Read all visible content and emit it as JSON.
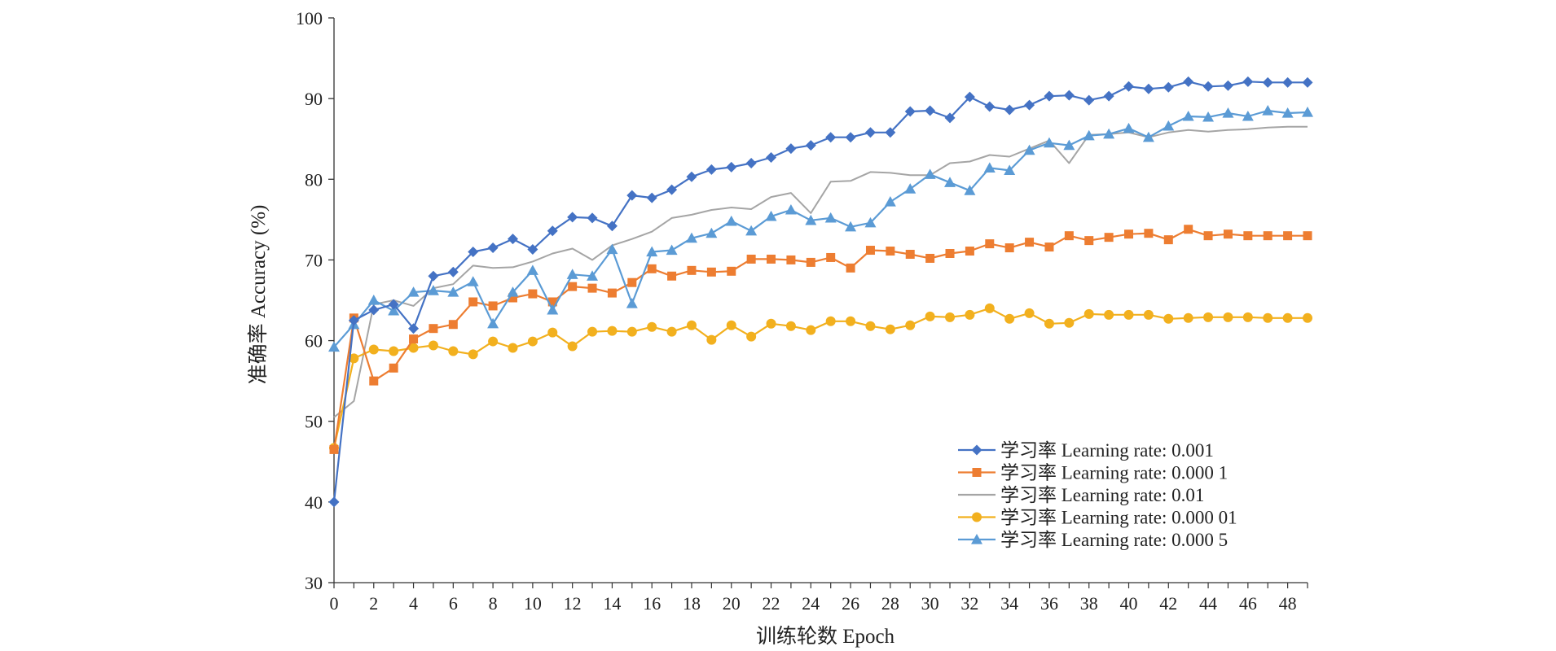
{
  "chart_data": {
    "type": "line",
    "xlabel": "训练轮数 Epoch",
    "ylabel": "准确率 Accuracy (%)",
    "xlim": [
      0,
      49
    ],
    "ylim": [
      30,
      100
    ],
    "x_ticks": [
      "0",
      "2",
      "4",
      "6",
      "8",
      "10",
      "12",
      "14",
      "16",
      "18",
      "20",
      "22",
      "24",
      "26",
      "28",
      "30",
      "32",
      "34",
      "36",
      "38",
      "40",
      "42",
      "44",
      "46",
      "48"
    ],
    "y_ticks": [
      "30",
      "40",
      "50",
      "60",
      "70",
      "80",
      "90",
      "100"
    ],
    "grid": false,
    "legend_position": "lower-right",
    "x": [
      0,
      1,
      2,
      3,
      4,
      5,
      6,
      7,
      8,
      9,
      10,
      11,
      12,
      13,
      14,
      15,
      16,
      17,
      18,
      19,
      20,
      21,
      22,
      23,
      24,
      25,
      26,
      27,
      28,
      29,
      30,
      31,
      32,
      33,
      34,
      35,
      36,
      37,
      38,
      39,
      40,
      41,
      42,
      43,
      44,
      45,
      46,
      47,
      48,
      49
    ],
    "series": [
      {
        "name": "学习率 Learning rate: 0.001",
        "color": "#4472C4",
        "marker": "diamond",
        "values": [
          40,
          62.5,
          63.8,
          64.5,
          61.5,
          68,
          68.5,
          71,
          71.5,
          72.6,
          71.3,
          73.6,
          75.3,
          75.2,
          74.2,
          78,
          77.7,
          78.7,
          80.3,
          81.2,
          81.5,
          82,
          82.7,
          83.8,
          84.2,
          85.2,
          85.2,
          85.8,
          85.8,
          88.4,
          88.5,
          87.6,
          90.2,
          89,
          88.6,
          89.2,
          90.3,
          90.4,
          89.8,
          90.3,
          91.5,
          91.2,
          91.4,
          92.1,
          91.5,
          91.6,
          92.1,
          92,
          92,
          92
        ]
      },
      {
        "name": "学习率 Learning rate: 0.000 1",
        "color": "#ED7D31",
        "marker": "square",
        "values": [
          46.5,
          62.8,
          55,
          56.6,
          60.2,
          61.5,
          62,
          64.8,
          64.3,
          65.3,
          65.8,
          64.8,
          66.7,
          66.5,
          65.9,
          67.2,
          68.9,
          68,
          68.7,
          68.5,
          68.6,
          70.1,
          70.1,
          70,
          69.7,
          70.3,
          69,
          71.2,
          71.1,
          70.7,
          70.2,
          70.8,
          71.1,
          72,
          71.5,
          72.2,
          71.6,
          73,
          72.4,
          72.8,
          73.2,
          73.3,
          72.5,
          73.8,
          73,
          73.2,
          73,
          73,
          73,
          73
        ]
      },
      {
        "name": "学习率 Learning rate: 0.01",
        "color": "#A5A5A5",
        "marker": "none",
        "values": [
          50.5,
          52.5,
          64.5,
          65,
          64.3,
          66.5,
          67,
          69.3,
          69,
          69.1,
          69.8,
          70.8,
          71.4,
          70,
          71.8,
          72.6,
          73.5,
          75.2,
          75.6,
          76.2,
          76.5,
          76.3,
          77.8,
          78.3,
          75.8,
          79.7,
          79.8,
          80.9,
          80.8,
          80.5,
          80.5,
          82,
          82.2,
          83,
          82.8,
          83.8,
          84.8,
          82,
          85.5,
          85.6,
          85.8,
          85.2,
          85.8,
          86.1,
          85.9,
          86.1,
          86.2,
          86.4,
          86.5,
          86.5
        ]
      },
      {
        "name": "学习率 Learning rate: 0.000 01",
        "color": "#F2B01E",
        "marker": "circle",
        "values": [
          46.7,
          57.8,
          58.9,
          58.7,
          59.1,
          59.4,
          58.7,
          58.3,
          59.9,
          59.1,
          59.9,
          61,
          59.3,
          61.1,
          61.2,
          61.1,
          61.7,
          61.1,
          61.9,
          60.1,
          61.9,
          60.5,
          62.1,
          61.8,
          61.3,
          62.4,
          62.4,
          61.8,
          61.4,
          61.9,
          63,
          62.9,
          63.2,
          64,
          62.7,
          63.4,
          62.1,
          62.2,
          63.3,
          63.2,
          63.2,
          63.2,
          62.7,
          62.8,
          62.9,
          62.9,
          62.9,
          62.8,
          62.8,
          62.8
        ]
      },
      {
        "name": "学习率 Learning rate: 0.000 5",
        "color": "#5B9BD5",
        "marker": "triangle",
        "values": [
          59.2,
          62,
          65,
          63.7,
          66,
          66.2,
          66,
          67.3,
          62.1,
          66,
          68.7,
          63.8,
          68.2,
          68,
          71.3,
          64.6,
          71,
          71.2,
          72.7,
          73.3,
          74.8,
          73.6,
          75.4,
          76.2,
          74.9,
          75.2,
          74.1,
          74.6,
          77.2,
          78.8,
          80.6,
          79.6,
          78.6,
          81.4,
          81.1,
          83.6,
          84.5,
          84.2,
          85.4,
          85.6,
          86.3,
          85.2,
          86.6,
          87.8,
          87.7,
          88.2,
          87.8,
          88.5,
          88.2,
          88.3
        ]
      }
    ]
  }
}
